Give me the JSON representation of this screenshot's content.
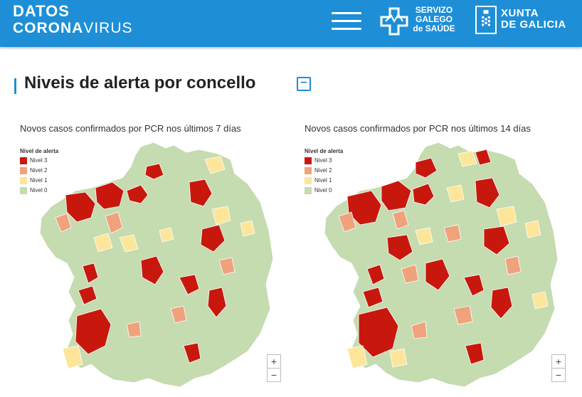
{
  "header": {
    "brand_line1": "DATOS",
    "brand_line2_bold": "CORONA",
    "brand_line2_light": "VIRUS",
    "sgs_lines": [
      "SERVIZO",
      "GALEGO",
      "de SAÚDE"
    ],
    "xunta_lines": [
      "XUNTA",
      "DE GALICIA"
    ]
  },
  "section": {
    "title": "Niveis de alerta por concello",
    "collapse_label": "−"
  },
  "colors": {
    "accent": "#1e8fd6",
    "nivel3": "#c8180e",
    "nivel2": "#f0a27c",
    "nivel1": "#fde59a",
    "nivel0": "#c5dbb0"
  },
  "legend": {
    "title": "Nivel de alerta",
    "items": [
      {
        "label": "Nivel 3",
        "color": "#c8180e"
      },
      {
        "label": "Nivel 2",
        "color": "#f0a27c"
      },
      {
        "label": "Nivel 1",
        "color": "#fde59a"
      },
      {
        "label": "Nivel 0",
        "color": "#c5dbb0"
      }
    ]
  },
  "maps": [
    {
      "title": "Novos casos confirmados por PCR nos últimos 7 días",
      "zoom_in": "+",
      "zoom_out": "−"
    },
    {
      "title": "Novos casos confirmados por PCR nos últimos 14 días",
      "zoom_in": "+",
      "zoom_out": "−"
    }
  ]
}
